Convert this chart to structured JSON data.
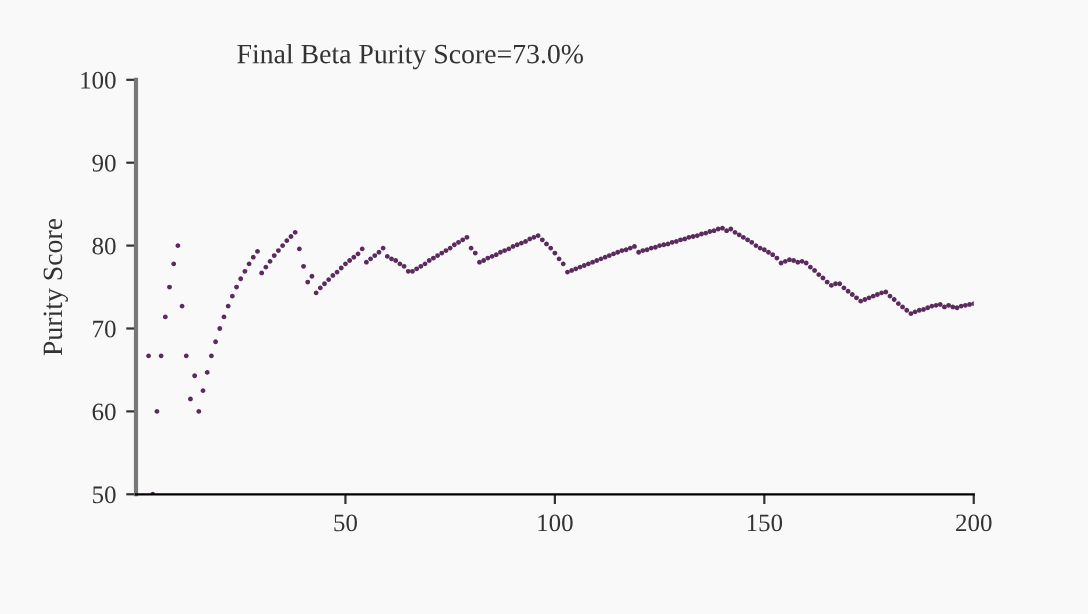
{
  "chart_data": {
    "type": "scatter",
    "title": "Final Beta Purity Score=73.0%",
    "ylabel": "Purity Score",
    "xlim": [
      0,
      200
    ],
    "xticks": [
      50,
      100,
      150,
      200
    ],
    "ylim": [
      50,
      100
    ],
    "yticks": [
      50,
      60,
      70,
      80,
      90,
      100
    ],
    "grid": false,
    "marker": "circle",
    "series": [
      {
        "color": "#5b2a5e",
        "x": [
          3,
          4,
          5,
          6,
          7,
          8,
          9,
          10,
          11,
          12,
          13,
          14,
          15,
          16,
          17,
          18,
          19,
          20,
          21,
          22,
          23,
          24,
          25,
          26,
          27,
          28,
          29,
          30,
          31,
          32,
          33,
          34,
          35,
          36,
          37,
          38,
          39,
          40,
          41,
          42,
          43,
          44,
          45,
          46,
          47,
          48,
          49,
          50,
          51,
          52,
          53,
          54,
          55,
          56,
          57,
          58,
          59,
          60,
          61,
          62,
          63,
          64,
          65,
          66,
          67,
          68,
          69,
          70,
          71,
          72,
          73,
          74,
          75,
          76,
          77,
          78,
          79,
          80,
          81,
          82,
          83,
          84,
          85,
          86,
          87,
          88,
          89,
          90,
          91,
          92,
          93,
          94,
          95,
          96,
          97,
          98,
          99,
          100,
          101,
          102,
          103,
          104,
          105,
          106,
          107,
          108,
          109,
          110,
          111,
          112,
          113,
          114,
          115,
          116,
          117,
          118,
          119,
          120,
          121,
          122,
          123,
          124,
          125,
          126,
          127,
          128,
          129,
          130,
          131,
          132,
          133,
          134,
          135,
          136,
          137,
          138,
          139,
          140,
          141,
          142,
          143,
          144,
          145,
          146,
          147,
          148,
          149,
          150,
          151,
          152,
          153,
          154,
          155,
          156,
          157,
          158,
          159,
          160,
          161,
          162,
          163,
          164,
          165,
          166,
          167,
          168,
          169,
          170,
          171,
          172,
          173,
          174,
          175,
          176,
          177,
          178,
          179,
          180,
          181,
          182,
          183,
          184,
          185,
          186,
          187,
          188,
          189,
          190,
          191,
          192,
          193,
          194,
          195,
          196,
          197,
          198,
          199,
          200
        ],
        "values": [
          66.7,
          50,
          60,
          66.7,
          71.4,
          75,
          77.8,
          80,
          72.7,
          66.7,
          61.5,
          64.3,
          60,
          62.5,
          64.7,
          66.7,
          68.4,
          70,
          71.4,
          72.7,
          73.9,
          75,
          76,
          76.9,
          77.8,
          78.6,
          79.3,
          76.7,
          77.4,
          78.1,
          78.8,
          79.4,
          80,
          80.6,
          81.1,
          81.6,
          79.6,
          77.5,
          75.6,
          76.3,
          74.3,
          74.9,
          75.4,
          75.9,
          76.4,
          76.8,
          77.3,
          77.8,
          78.2,
          78.6,
          79,
          79.6,
          78,
          78.4,
          78.8,
          79.2,
          79.7,
          78.7,
          78.4,
          78.2,
          77.8,
          77.5,
          76.9,
          76.9,
          77.2,
          77.5,
          77.8,
          78.2,
          78.5,
          78.8,
          79.1,
          79.4,
          79.7,
          80.1,
          80.4,
          80.7,
          81,
          79.7,
          79.1,
          78,
          78.2,
          78.5,
          78.7,
          78.9,
          79.2,
          79.4,
          79.6,
          79.9,
          80.1,
          80.3,
          80.5,
          80.8,
          81,
          81.2,
          80.7,
          80.2,
          79.7,
          79.1,
          78.4,
          77.8,
          76.8,
          77,
          77.2,
          77.4,
          77.6,
          77.8,
          78,
          78.2,
          78.4,
          78.6,
          78.8,
          79,
          79.2,
          79.4,
          79.5,
          79.7,
          79.9,
          79.2,
          79.4,
          79.5,
          79.7,
          79.8,
          80,
          80.1,
          80.2,
          80.4,
          80.5,
          80.7,
          80.8,
          81,
          81.1,
          81.2,
          81.4,
          81.5,
          81.7,
          81.8,
          82,
          82.1,
          81.8,
          82,
          81.6,
          81.3,
          81,
          80.7,
          80.4,
          80,
          79.7,
          79.5,
          79.2,
          78.9,
          78.5,
          77.9,
          78.1,
          78.3,
          78.2,
          78,
          78.1,
          77.9,
          77.4,
          77,
          76.5,
          76.1,
          75.6,
          75.2,
          75.4,
          75.4,
          74.9,
          74.5,
          74.1,
          73.7,
          73.3,
          73.5,
          73.7,
          73.9,
          74.1,
          74.3,
          74.4,
          73.9,
          73.5,
          73,
          72.6,
          72.2,
          71.8,
          72,
          72.2,
          72.3,
          72.5,
          72.7,
          72.8,
          72.9,
          72.6,
          72.8,
          72.6,
          72.5,
          72.7,
          72.8,
          72.9,
          73
        ]
      }
    ]
  }
}
